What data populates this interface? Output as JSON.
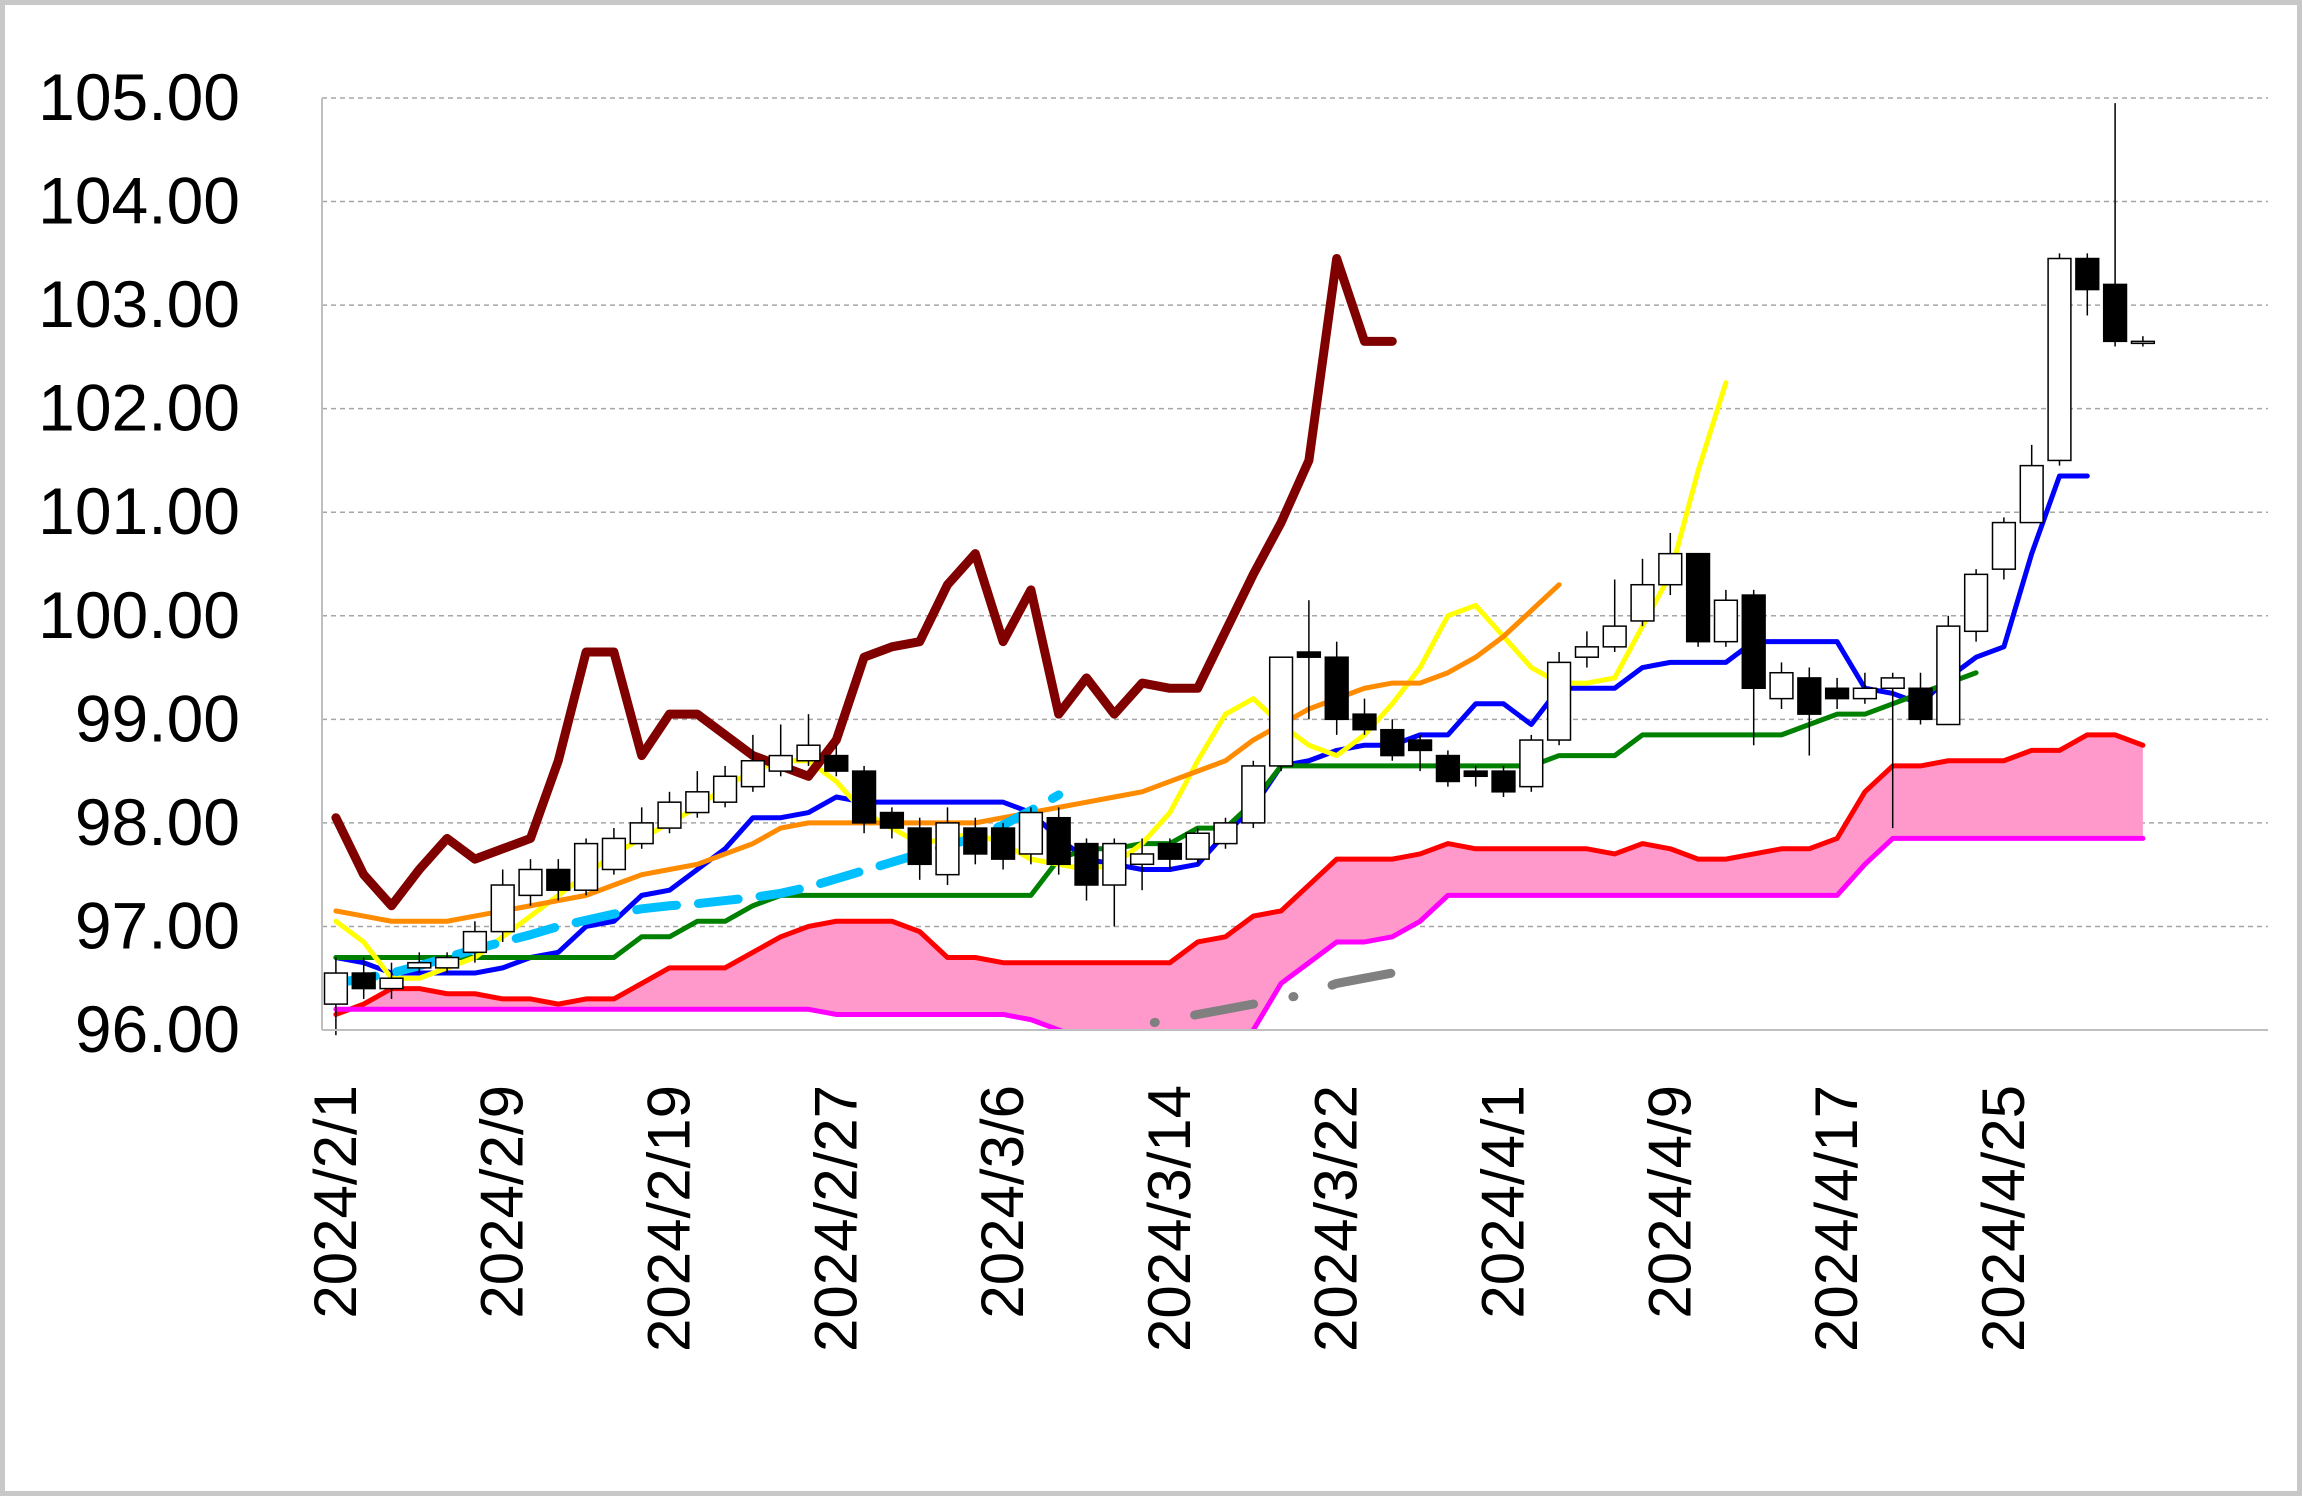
{
  "chart_data": {
    "type": "candlestick",
    "title": "",
    "xlabel": "",
    "ylabel": "",
    "ylim": [
      96,
      105
    ],
    "yticks": [
      "96.00",
      "97.00",
      "98.00",
      "99.00",
      "100.00",
      "101.00",
      "102.00",
      "103.00",
      "104.00",
      "105.00"
    ],
    "grid": true,
    "x_tick_labels": [
      "2024/2/1",
      "2024/2/9",
      "2024/2/19",
      "2024/2/27",
      "2024/3/6",
      "2024/3/14",
      "2024/3/22",
      "2024/4/1",
      "2024/4/9",
      "2024/4/17",
      "2024/4/25"
    ],
    "x_tick_index": [
      0,
      6,
      12,
      18,
      24,
      30,
      36,
      42,
      48,
      54,
      60
    ],
    "total_slots": 70,
    "candles": {
      "open": [
        96.25,
        96.55,
        96.4,
        96.6,
        96.6,
        96.75,
        96.95,
        97.3,
        97.55,
        97.35,
        97.55,
        97.8,
        97.95,
        98.1,
        98.2,
        98.35,
        98.5,
        98.6,
        98.65,
        98.5,
        98.1,
        97.95,
        97.5,
        97.95,
        97.95,
        97.7,
        98.05,
        97.8,
        97.4,
        97.6,
        97.8,
        97.65,
        97.8,
        98.0,
        98.55,
        99.65,
        99.6,
        99.05,
        98.9,
        98.8,
        98.65,
        98.5,
        98.5,
        98.35,
        98.8,
        99.6,
        99.7,
        99.95,
        100.3,
        100.6,
        99.75,
        100.2,
        99.2,
        99.4,
        99.3,
        99.2,
        99.3,
        99.3,
        98.95,
        99.85,
        100.45,
        100.9,
        101.5,
        103.45,
        103.2,
        102.65
      ],
      "close": [
        96.55,
        96.4,
        96.5,
        96.65,
        96.7,
        96.95,
        97.4,
        97.55,
        97.35,
        97.8,
        97.85,
        98.0,
        98.2,
        98.3,
        98.45,
        98.6,
        98.65,
        98.75,
        98.5,
        98.0,
        97.95,
        97.6,
        98.0,
        97.7,
        97.65,
        98.1,
        97.6,
        97.4,
        97.8,
        97.7,
        97.65,
        97.9,
        98.0,
        98.55,
        99.6,
        99.6,
        99.0,
        98.9,
        98.65,
        98.7,
        98.4,
        98.45,
        98.3,
        98.8,
        99.55,
        99.7,
        99.9,
        100.3,
        100.6,
        99.75,
        100.15,
        99.3,
        99.45,
        99.05,
        99.2,
        99.3,
        99.4,
        99.0,
        99.9,
        100.4,
        100.9,
        101.45,
        103.45,
        103.15,
        102.65,
        102.65
      ],
      "high": [
        96.7,
        96.7,
        96.65,
        96.75,
        96.75,
        97.05,
        97.55,
        97.65,
        97.65,
        97.85,
        97.95,
        98.15,
        98.3,
        98.5,
        98.55,
        98.85,
        98.95,
        99.05,
        98.75,
        98.55,
        98.15,
        98.05,
        98.15,
        98.05,
        98.0,
        98.15,
        98.15,
        97.85,
        97.85,
        97.85,
        97.85,
        97.95,
        98.05,
        98.6,
        99.6,
        100.15,
        99.75,
        99.2,
        99.0,
        98.85,
        98.7,
        98.55,
        98.55,
        98.85,
        99.65,
        99.85,
        100.35,
        100.55,
        100.8,
        100.6,
        100.25,
        100.25,
        99.55,
        99.5,
        99.4,
        99.45,
        99.45,
        99.45,
        100.0,
        100.45,
        100.95,
        101.65,
        103.5,
        103.5,
        104.95,
        102.7
      ],
      "low": [
        95.95,
        96.3,
        96.3,
        96.55,
        96.55,
        96.65,
        96.85,
        97.2,
        97.25,
        97.3,
        97.5,
        97.75,
        97.9,
        98.05,
        98.15,
        98.3,
        98.45,
        98.55,
        98.45,
        97.9,
        97.85,
        97.45,
        97.4,
        97.6,
        97.55,
        97.6,
        97.5,
        97.25,
        97.0,
        97.35,
        97.55,
        97.6,
        97.75,
        97.95,
        98.5,
        99.0,
        98.85,
        98.85,
        98.6,
        98.5,
        98.35,
        98.35,
        98.25,
        98.3,
        98.75,
        99.5,
        99.65,
        99.9,
        100.2,
        99.7,
        99.7,
        98.75,
        99.1,
        98.65,
        99.1,
        99.15,
        97.95,
        98.95,
        98.95,
        99.75,
        100.35,
        100.9,
        101.45,
        102.9,
        102.6,
        102.6
      ]
    },
    "series": [
      {
        "color": "#0000ff",
        "start": 0,
        "values": [
          96.7,
          96.65,
          96.55,
          96.55,
          96.55,
          96.55,
          96.6,
          96.7,
          96.75,
          97.0,
          97.05,
          97.3,
          97.35,
          97.55,
          97.75,
          98.05,
          98.05,
          98.1,
          98.25,
          98.2,
          98.2,
          98.2,
          98.2,
          98.2,
          98.2,
          98.1,
          97.85,
          97.65,
          97.6,
          97.55,
          97.55,
          97.6,
          97.9,
          98.15,
          98.55,
          98.6,
          98.7,
          98.75,
          98.75,
          98.85,
          98.85,
          99.15,
          99.15,
          98.95,
          99.3,
          99.3,
          99.3,
          99.5,
          99.55,
          99.55,
          99.55,
          99.75,
          99.75,
          99.75,
          99.75,
          99.3,
          99.25,
          99.15,
          99.4,
          99.6,
          99.7,
          100.6,
          101.35,
          101.35
        ]
      },
      {
        "color": "#008000",
        "start": 0,
        "values": [
          96.7,
          96.7,
          96.7,
          96.7,
          96.7,
          96.7,
          96.7,
          96.7,
          96.7,
          96.7,
          96.7,
          96.9,
          96.9,
          97.05,
          97.05,
          97.2,
          97.3,
          97.3,
          97.3,
          97.3,
          97.3,
          97.3,
          97.3,
          97.3,
          97.3,
          97.3,
          97.65,
          97.75,
          97.75,
          97.8,
          97.8,
          97.95,
          97.95,
          98.2,
          98.55,
          98.55,
          98.55,
          98.55,
          98.55,
          98.55,
          98.55,
          98.55,
          98.55,
          98.55,
          98.65,
          98.65,
          98.65,
          98.85,
          98.85,
          98.85,
          98.85,
          98.85,
          98.85,
          98.95,
          99.05,
          99.05,
          99.15,
          99.25,
          99.35,
          99.45
        ]
      },
      {
        "color": "#ffff00",
        "start": 0,
        "values": [
          97.05,
          96.85,
          96.5,
          96.5,
          96.6,
          96.7,
          96.9,
          97.1,
          97.3,
          97.5,
          97.7,
          97.85,
          98.0,
          98.15,
          98.35,
          98.5,
          98.6,
          98.6,
          98.4,
          98.1,
          97.95,
          97.8,
          97.85,
          97.9,
          97.8,
          97.65,
          97.6,
          97.55,
          97.6,
          97.8,
          98.1,
          98.6,
          99.05,
          99.2,
          98.95,
          98.75,
          98.65,
          98.85,
          99.15,
          99.5,
          100.0,
          100.1,
          99.8,
          99.5,
          99.35,
          99.35,
          99.4,
          99.9,
          100.4,
          101.4,
          102.25
        ]
      },
      {
        "color": "#ff8c00",
        "start": 0,
        "values": [
          97.15,
          97.1,
          97.05,
          97.05,
          97.05,
          97.1,
          97.15,
          97.2,
          97.25,
          97.3,
          97.4,
          97.5,
          97.55,
          97.6,
          97.7,
          97.8,
          97.95,
          98.0,
          98.0,
          98.0,
          98.0,
          98.0,
          98.0,
          98.0,
          98.05,
          98.1,
          98.15,
          98.2,
          98.25,
          98.3,
          98.4,
          98.5,
          98.6,
          98.8,
          98.95,
          99.1,
          99.2,
          99.3,
          99.35,
          99.35,
          99.45,
          99.6,
          99.8,
          100.05,
          100.3
        ]
      },
      {
        "color": "#800000",
        "start": 0,
        "values": [
          98.05,
          97.5,
          97.2,
          97.55,
          97.85,
          97.65,
          97.75,
          97.85,
          98.6,
          99.65,
          99.65,
          98.65,
          99.05,
          99.05,
          98.85,
          98.65,
          98.55,
          98.45,
          98.8,
          99.6,
          99.7,
          99.75,
          100.3,
          100.6,
          99.75,
          100.25,
          99.05,
          99.4,
          99.05,
          99.35,
          99.3,
          99.3,
          99.85,
          100.4,
          100.9,
          101.5,
          103.45,
          102.65,
          102.65
        ]
      },
      {
        "color": "#00bfff",
        "start": 0,
        "dash": true,
        "values": [
          96.45,
          96.5,
          96.55,
          96.62,
          96.7,
          96.78,
          96.85,
          96.92,
          97.0,
          97.06,
          97.12,
          97.17,
          97.2,
          97.22,
          97.25,
          97.28,
          97.32,
          97.38,
          97.46,
          97.54,
          97.62,
          97.7,
          97.78,
          97.86,
          97.98,
          98.12,
          98.27
        ]
      },
      {
        "color": "#808080",
        "start": 26,
        "dash": true,
        "values": [
          95.8,
          95.85,
          95.95,
          96.05,
          96.1,
          96.15,
          96.2,
          96.25,
          96.3,
          96.35,
          96.45,
          96.5,
          96.55,
          96.6
        ]
      },
      {
        "color": "#ff0000",
        "start": 0,
        "values": [
          96.15,
          96.25,
          96.4,
          96.4,
          96.35,
          96.35,
          96.3,
          96.3,
          96.25,
          96.3,
          96.3,
          96.45,
          96.6,
          96.6,
          96.6,
          96.75,
          96.9,
          97.0,
          97.05,
          97.05,
          97.05,
          96.95,
          96.7,
          96.7,
          96.65,
          96.65,
          96.65,
          96.65,
          96.65,
          96.65,
          96.65,
          96.85,
          96.9,
          97.1,
          97.15,
          97.4,
          97.65,
          97.65,
          97.65,
          97.7,
          97.8,
          97.75,
          97.75,
          97.75,
          97.75,
          97.75,
          97.7,
          97.8,
          97.75,
          97.65,
          97.65,
          97.7,
          97.75,
          97.75,
          97.85,
          98.3,
          98.55,
          98.55,
          98.6,
          98.6,
          98.6,
          98.7,
          98.7,
          98.85,
          98.85,
          98.75
        ]
      },
      {
        "color": "#ff00ff",
        "start": 0,
        "values": [
          96.2,
          96.2,
          96.2,
          96.2,
          96.2,
          96.2,
          96.2,
          96.2,
          96.2,
          96.2,
          96.2,
          96.2,
          96.2,
          96.2,
          96.2,
          96.2,
          96.2,
          96.2,
          96.15,
          96.15,
          96.15,
          96.15,
          96.15,
          96.15,
          96.15,
          96.1,
          96.0,
          95.9,
          95.8,
          95.7,
          95.7,
          95.7,
          95.75,
          96.0,
          96.45,
          96.65,
          96.85,
          96.85,
          96.9,
          97.05,
          97.3,
          97.3,
          97.3,
          97.3,
          97.3,
          97.3,
          97.3,
          97.3,
          97.3,
          97.3,
          97.3,
          97.3,
          97.3,
          97.3,
          97.3,
          97.6,
          97.85,
          97.85,
          97.85,
          97.85,
          97.85,
          97.85,
          97.85,
          97.85,
          97.85,
          97.85
        ]
      }
    ],
    "cloud_fill_color": "#ff99cc"
  }
}
